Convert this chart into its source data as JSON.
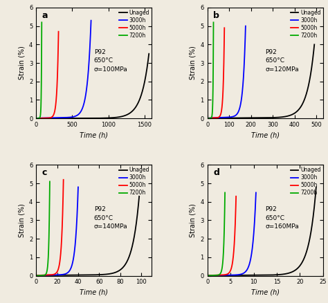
{
  "panels": [
    {
      "label": "a",
      "stress": "σ=100MPa",
      "xlim": [
        0,
        1600
      ],
      "xticks": [
        0,
        500,
        1000,
        1500
      ],
      "curves": {
        "Unaged": {
          "t_end": 1560,
          "t_inflect": 1050,
          "color": "#000000",
          "y_max": 3.5
        },
        "3000h": {
          "t_end": 760,
          "t_inflect": 580,
          "color": "#0000ff",
          "y_max": 5.3
        },
        "5000h": {
          "t_end": 310,
          "t_inflect": 220,
          "color": "#ff0000",
          "y_max": 4.7
        },
        "7200h": {
          "t_end": 78,
          "t_inflect": 52,
          "color": "#00aa00",
          "y_max": 5.2
        }
      }
    },
    {
      "label": "b",
      "stress": "σ=120MPa",
      "xlim": [
        0,
        530
      ],
      "xticks": [
        0,
        100,
        200,
        300,
        400,
        500
      ],
      "curves": {
        "Unaged": {
          "t_end": 490,
          "t_inflect": 370,
          "color": "#000000",
          "y_max": 4.0
        },
        "3000h": {
          "t_end": 175,
          "t_inflect": 138,
          "color": "#0000ff",
          "y_max": 5.0
        },
        "5000h": {
          "t_end": 78,
          "t_inflect": 58,
          "color": "#ff0000",
          "y_max": 4.9
        },
        "7200h": {
          "t_end": 28,
          "t_inflect": 18,
          "color": "#00aa00",
          "y_max": 5.2
        }
      }
    },
    {
      "label": "c",
      "stress": "σ=140MPa",
      "xlim": [
        0,
        110
      ],
      "xticks": [
        0,
        20,
        40,
        60,
        80,
        100
      ],
      "curves": {
        "Unaged": {
          "t_end": 98,
          "t_inflect": 76,
          "color": "#000000",
          "y_max": 4.3
        },
        "3000h": {
          "t_end": 40,
          "t_inflect": 31,
          "color": "#0000ff",
          "y_max": 4.8
        },
        "5000h": {
          "t_end": 26,
          "t_inflect": 20,
          "color": "#ff0000",
          "y_max": 5.2
        },
        "7200h": {
          "t_end": 13,
          "t_inflect": 9,
          "color": "#00aa00",
          "y_max": 5.1
        }
      }
    },
    {
      "label": "d",
      "stress": "σ=160MPa",
      "xlim": [
        0,
        25
      ],
      "xticks": [
        0,
        5,
        10,
        15,
        20,
        25
      ],
      "curves": {
        "Unaged": {
          "t_end": 23.5,
          "t_inflect": 17.5,
          "color": "#000000",
          "y_max": 4.8
        },
        "3000h": {
          "t_end": 10.5,
          "t_inflect": 8.0,
          "color": "#0000ff",
          "y_max": 4.5
        },
        "5000h": {
          "t_end": 6.2,
          "t_inflect": 4.8,
          "color": "#ff0000",
          "y_max": 4.3
        },
        "7200h": {
          "t_end": 3.8,
          "t_inflect": 2.8,
          "color": "#00aa00",
          "y_max": 4.5
        }
      }
    }
  ],
  "ylim": [
    0,
    6
  ],
  "yticks": [
    0,
    1,
    2,
    3,
    4,
    5,
    6
  ],
  "ylabel": "Strain (%)",
  "xlabel": "Time (h)",
  "material": "P92",
  "temperature": "650°C",
  "legend_labels": [
    "Unaged",
    "3000h",
    "5000h",
    "7200h"
  ],
  "legend_colors": [
    "#000000",
    "#0000ff",
    "#ff0000",
    "#00aa00"
  ],
  "background_color": "#f0ebe0"
}
